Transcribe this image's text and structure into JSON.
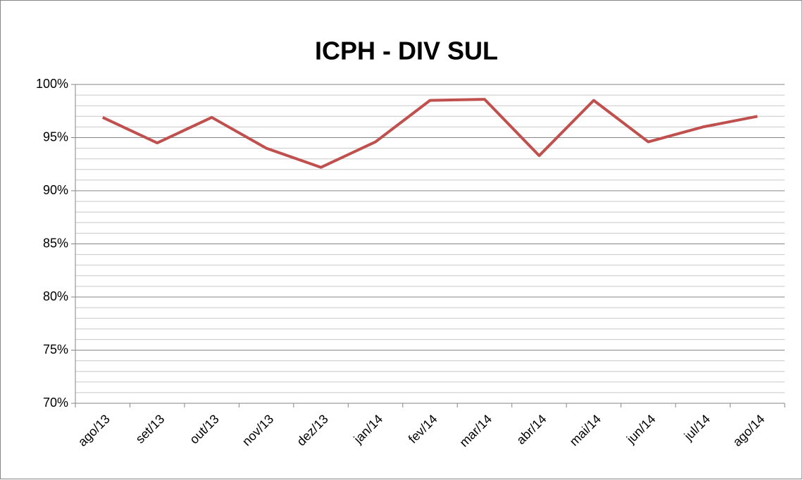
{
  "chart_data": {
    "type": "line",
    "title": "ICPH - DIV SUL",
    "categories": [
      "ago/13",
      "set/13",
      "out/13",
      "nov/13",
      "dez/13",
      "jan/14",
      "fev/14",
      "mar/14",
      "abr/14",
      "mai/14",
      "jun/14",
      "jul/14",
      "ago/14"
    ],
    "series": [
      {
        "name": "ICPH",
        "color": "#c0504d",
        "values": [
          96.9,
          94.5,
          96.9,
          94.0,
          92.2,
          94.6,
          98.5,
          98.6,
          93.3,
          98.5,
          94.6,
          96.0,
          97.0
        ]
      }
    ],
    "ylim": [
      70,
      100
    ],
    "yticks": [
      {
        "value": 70,
        "label": "70%"
      },
      {
        "value": 75,
        "label": "75%"
      },
      {
        "value": 80,
        "label": "80%"
      },
      {
        "value": 85,
        "label": "85%"
      },
      {
        "value": 90,
        "label": "90%"
      },
      {
        "value": 95,
        "label": "95%"
      },
      {
        "value": 100,
        "label": "100%"
      }
    ],
    "minor_yticks": [
      71,
      72,
      73,
      74,
      76,
      77,
      78,
      79,
      81,
      82,
      83,
      84,
      86,
      87,
      88,
      89,
      91,
      92,
      93,
      94,
      96,
      97,
      98,
      99
    ],
    "grid": true,
    "legend": false
  }
}
